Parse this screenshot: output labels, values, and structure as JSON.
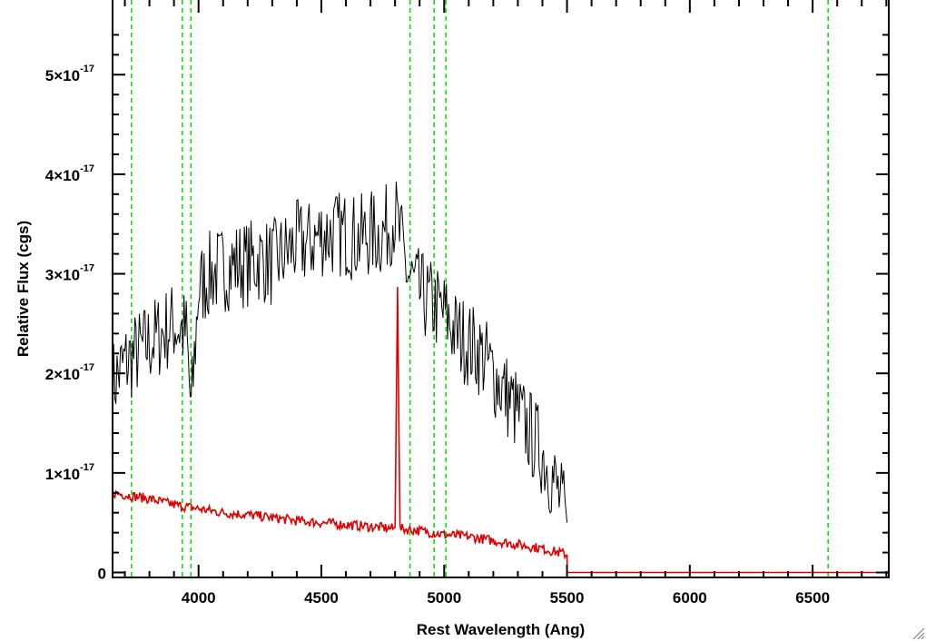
{
  "chart_data": {
    "type": "line",
    "title": "",
    "xlabel": "Rest Wavelength (Ang)",
    "ylabel": "Relative Flux (cgs)",
    "xlim": [
      3650,
      6810
    ],
    "ylim": [
      -5e-19,
      5.75e-17
    ],
    "x_ticks": [
      {
        "value": 4000,
        "label": "4000"
      },
      {
        "value": 4500,
        "label": "4500"
      },
      {
        "value": 5000,
        "label": "5000"
      },
      {
        "value": 5500,
        "label": "5500"
      },
      {
        "value": 6000,
        "label": "6000"
      },
      {
        "value": 6500,
        "label": "6500"
      }
    ],
    "y_ticks": [
      {
        "value": 0,
        "mant": "0",
        "exp": ""
      },
      {
        "value": 1e-17,
        "mant": "1×10",
        "exp": "-17"
      },
      {
        "value": 2e-17,
        "mant": "2×10",
        "exp": "-17"
      },
      {
        "value": 3e-17,
        "mant": "3×10",
        "exp": "-17"
      },
      {
        "value": 4e-17,
        "mant": "4×10",
        "exp": "-17"
      },
      {
        "value": 5e-17,
        "mant": "5×10",
        "exp": "-17"
      }
    ],
    "vertical_lines": [
      3727,
      3934,
      3969,
      4861,
      4959,
      5007,
      6563
    ],
    "series": [
      {
        "color": "#000000",
        "x": [
          3650,
          3700,
          3750,
          3800,
          3850,
          3900,
          3950,
          3970,
          4000,
          4050,
          4100,
          4150,
          4200,
          4250,
          4300,
          4350,
          4400,
          4450,
          4500,
          4550,
          4600,
          4650,
          4700,
          4750,
          4800,
          4850,
          4900,
          4950,
          5000,
          5050,
          5100,
          5150,
          5200,
          5250,
          5300,
          5350,
          5400,
          5450,
          5500
        ],
        "y": [
          1.9e-17,
          2.1e-17,
          2.2e-17,
          2.3e-17,
          2.4e-17,
          2.5e-17,
          2.4e-17,
          1.6e-17,
          2.85e-17,
          3e-17,
          3.05e-17,
          3.1e-17,
          3.1e-17,
          3.15e-17,
          3.1e-17,
          3.2e-17,
          3.3e-17,
          3.3e-17,
          3.4e-17,
          3.4e-17,
          3.4e-17,
          3.35e-17,
          3.4e-17,
          3.4e-17,
          3.6e-17,
          3e-17,
          2.8e-17,
          2.7e-17,
          2.6e-17,
          2.4e-17,
          2.3e-17,
          2.2e-17,
          2e-17,
          1.8e-17,
          1.6e-17,
          1.4e-17,
          1.2e-17,
          9e-18,
          5e-18
        ],
        "noise": 4.5e-18
      },
      {
        "color": "#dd0000",
        "x": [
          3650,
          3700,
          3800,
          3900,
          4000,
          4100,
          4200,
          4300,
          4400,
          4500,
          4600,
          4700,
          4800,
          4810,
          4820,
          4900,
          5000,
          5100,
          5200,
          5300,
          5400,
          5500,
          5501,
          6810
        ],
        "y": [
          8e-18,
          7.8e-18,
          7.4e-18,
          6.8e-18,
          6.4e-18,
          6e-18,
          5.8e-18,
          5.5e-18,
          5.2e-18,
          5e-18,
          4.8e-18,
          4.6e-18,
          4.4e-18,
          2.9e-17,
          4.4e-18,
          4.2e-18,
          3.8e-18,
          3.6e-18,
          3.2e-18,
          2.8e-18,
          2.4e-18,
          1.8e-18,
          0.0,
          0.0
        ],
        "noise": 5e-19
      }
    ]
  }
}
